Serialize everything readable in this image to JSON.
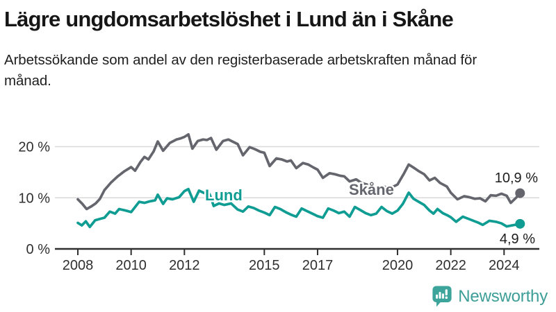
{
  "header": {
    "title": "Lägre ungdomsarbetslöshet i Lund än i Skåne",
    "subtitle": "Arbetssökande som andel av den registerbaserade arbetskraften månad för månad."
  },
  "brand": {
    "name": "Newsworthy",
    "color": "#3da49b"
  },
  "colors": {
    "lund_line": "#0f9c93",
    "skane_line": "#64656d",
    "gridline": "#d9d9d9",
    "axis": "#2f2f2f",
    "text_dark": "#1c1c1c"
  },
  "chart_data": {
    "type": "line",
    "title": "Lägre ungdomsarbetslöshet i Lund än i Skåne",
    "subtitle": "Arbetssökande som andel av den registerbaserade arbetskraften månad för månad.",
    "xlabel": "",
    "ylabel": "",
    "y_unit": "%",
    "ylim": [
      0,
      24
    ],
    "x_range_years": [
      2007.1,
      2025.3
    ],
    "grid": "horizontal-only",
    "legend_position": "inline-labels",
    "x_axis": {
      "ticks": [
        {
          "value": 2008,
          "label": "2008"
        },
        {
          "value": 2010,
          "label": "2010"
        },
        {
          "value": 2012,
          "label": "2012"
        },
        {
          "value": 2015,
          "label": "2015"
        },
        {
          "value": 2017,
          "label": "2017"
        },
        {
          "value": 2020,
          "label": "2020"
        },
        {
          "value": 2022,
          "label": "2022"
        },
        {
          "value": 2024,
          "label": "2024"
        }
      ]
    },
    "y_axis": {
      "ticks": [
        {
          "value": 0,
          "label": "0 %",
          "gridline": false
        },
        {
          "value": 10,
          "label": "10 %",
          "gridline": true
        },
        {
          "value": 20,
          "label": "20 %",
          "gridline": true
        }
      ]
    },
    "series": [
      {
        "name": "Skåne",
        "color": "#64656d",
        "end_value": 10.9,
        "end_label": "10,9 %",
        "points": [
          [
            2008.0,
            9.7
          ],
          [
            2008.17,
            8.8
          ],
          [
            2008.33,
            7.8
          ],
          [
            2008.5,
            8.3
          ],
          [
            2008.67,
            8.9
          ],
          [
            2008.83,
            9.8
          ],
          [
            2009.0,
            11.5
          ],
          [
            2009.25,
            13.0
          ],
          [
            2009.5,
            14.2
          ],
          [
            2009.75,
            15.2
          ],
          [
            2010.0,
            16.0
          ],
          [
            2010.15,
            15.3
          ],
          [
            2010.35,
            17.0
          ],
          [
            2010.5,
            18.0
          ],
          [
            2010.65,
            17.5
          ],
          [
            2010.85,
            19.1
          ],
          [
            2011.0,
            21.0
          ],
          [
            2011.2,
            19.2
          ],
          [
            2011.45,
            20.7
          ],
          [
            2011.7,
            21.4
          ],
          [
            2011.85,
            21.6
          ],
          [
            2012.0,
            21.9
          ],
          [
            2012.15,
            22.4
          ],
          [
            2012.3,
            19.6
          ],
          [
            2012.5,
            21.1
          ],
          [
            2012.7,
            21.4
          ],
          [
            2012.85,
            21.3
          ],
          [
            2013.0,
            21.7
          ],
          [
            2013.2,
            19.4
          ],
          [
            2013.45,
            21.1
          ],
          [
            2013.65,
            21.4
          ],
          [
            2013.85,
            20.9
          ],
          [
            2014.0,
            20.5
          ],
          [
            2014.2,
            18.3
          ],
          [
            2014.45,
            19.9
          ],
          [
            2014.65,
            19.5
          ],
          [
            2014.85,
            19.0
          ],
          [
            2015.0,
            18.8
          ],
          [
            2015.2,
            16.2
          ],
          [
            2015.45,
            17.7
          ],
          [
            2015.65,
            17.5
          ],
          [
            2015.85,
            17.1
          ],
          [
            2016.0,
            17.3
          ],
          [
            2016.2,
            15.8
          ],
          [
            2016.45,
            16.8
          ],
          [
            2016.65,
            16.5
          ],
          [
            2016.85,
            15.9
          ],
          [
            2017.0,
            15.5
          ],
          [
            2017.2,
            13.9
          ],
          [
            2017.45,
            14.8
          ],
          [
            2017.65,
            14.6
          ],
          [
            2017.85,
            14.3
          ],
          [
            2018.0,
            14.2
          ],
          [
            2018.2,
            13.2
          ],
          [
            2018.45,
            13.6
          ],
          [
            2018.65,
            12.9
          ],
          [
            2018.85,
            12.6
          ],
          [
            2019.0,
            12.4
          ],
          [
            2019.2,
            11.4
          ],
          [
            2019.45,
            12.2
          ],
          [
            2019.65,
            12.0
          ],
          [
            2019.85,
            12.2
          ],
          [
            2020.0,
            12.6
          ],
          [
            2020.25,
            14.8
          ],
          [
            2020.42,
            16.5
          ],
          [
            2020.6,
            15.9
          ],
          [
            2020.8,
            15.2
          ],
          [
            2021.0,
            14.6
          ],
          [
            2021.2,
            13.4
          ],
          [
            2021.4,
            13.9
          ],
          [
            2021.6,
            12.9
          ],
          [
            2021.85,
            12.2
          ],
          [
            2022.0,
            11.0
          ],
          [
            2022.25,
            9.7
          ],
          [
            2022.5,
            10.3
          ],
          [
            2022.7,
            10.1
          ],
          [
            2022.9,
            9.8
          ],
          [
            2023.1,
            9.9
          ],
          [
            2023.3,
            9.3
          ],
          [
            2023.5,
            10.5
          ],
          [
            2023.7,
            10.4
          ],
          [
            2023.9,
            10.8
          ],
          [
            2024.1,
            10.4
          ],
          [
            2024.25,
            9.0
          ],
          [
            2024.45,
            10.0
          ],
          [
            2024.6,
            10.9
          ]
        ]
      },
      {
        "name": "Lund",
        "color": "#0f9c93",
        "end_value": 4.9,
        "end_label": "4,9 %",
        "points": [
          [
            2008.0,
            5.1
          ],
          [
            2008.15,
            4.6
          ],
          [
            2008.3,
            5.4
          ],
          [
            2008.45,
            4.3
          ],
          [
            2008.65,
            5.6
          ],
          [
            2008.85,
            5.9
          ],
          [
            2009.0,
            6.1
          ],
          [
            2009.2,
            7.3
          ],
          [
            2009.4,
            6.9
          ],
          [
            2009.55,
            7.8
          ],
          [
            2009.8,
            7.5
          ],
          [
            2010.0,
            7.2
          ],
          [
            2010.3,
            9.2
          ],
          [
            2010.5,
            9.0
          ],
          [
            2010.7,
            9.3
          ],
          [
            2010.9,
            9.5
          ],
          [
            2011.0,
            10.6
          ],
          [
            2011.2,
            8.8
          ],
          [
            2011.35,
            9.9
          ],
          [
            2011.55,
            9.7
          ],
          [
            2011.8,
            10.1
          ],
          [
            2012.0,
            11.3
          ],
          [
            2012.15,
            11.7
          ],
          [
            2012.35,
            9.2
          ],
          [
            2012.55,
            11.4
          ],
          [
            2012.75,
            10.9
          ],
          [
            2012.95,
            10.7
          ],
          [
            2013.1,
            8.4
          ],
          [
            2013.3,
            8.9
          ],
          [
            2013.5,
            8.6
          ],
          [
            2013.75,
            8.9
          ],
          [
            2014.0,
            7.7
          ],
          [
            2014.2,
            7.3
          ],
          [
            2014.4,
            8.3
          ],
          [
            2014.6,
            8.0
          ],
          [
            2014.8,
            7.5
          ],
          [
            2015.0,
            7.1
          ],
          [
            2015.2,
            6.6
          ],
          [
            2015.4,
            8.2
          ],
          [
            2015.6,
            7.8
          ],
          [
            2015.8,
            7.2
          ],
          [
            2016.0,
            6.7
          ],
          [
            2016.2,
            6.3
          ],
          [
            2016.4,
            7.9
          ],
          [
            2016.6,
            7.4
          ],
          [
            2016.8,
            6.9
          ],
          [
            2017.0,
            6.4
          ],
          [
            2017.2,
            6.1
          ],
          [
            2017.4,
            7.9
          ],
          [
            2017.6,
            7.5
          ],
          [
            2017.8,
            7.0
          ],
          [
            2018.0,
            7.3
          ],
          [
            2018.2,
            6.3
          ],
          [
            2018.4,
            8.2
          ],
          [
            2018.6,
            7.6
          ],
          [
            2018.8,
            7.0
          ],
          [
            2019.0,
            6.6
          ],
          [
            2019.2,
            6.9
          ],
          [
            2019.4,
            8.2
          ],
          [
            2019.6,
            7.4
          ],
          [
            2019.8,
            6.9
          ],
          [
            2020.0,
            7.5
          ],
          [
            2020.2,
            8.8
          ],
          [
            2020.42,
            11.0
          ],
          [
            2020.6,
            9.8
          ],
          [
            2020.8,
            9.2
          ],
          [
            2021.0,
            8.6
          ],
          [
            2021.2,
            7.5
          ],
          [
            2021.35,
            6.9
          ],
          [
            2021.5,
            7.8
          ],
          [
            2021.7,
            7.0
          ],
          [
            2021.9,
            6.5
          ],
          [
            2022.0,
            6.2
          ],
          [
            2022.2,
            5.3
          ],
          [
            2022.45,
            6.3
          ],
          [
            2022.7,
            5.8
          ],
          [
            2022.9,
            5.4
          ],
          [
            2023.0,
            5.2
          ],
          [
            2023.2,
            4.7
          ],
          [
            2023.45,
            5.5
          ],
          [
            2023.7,
            5.3
          ],
          [
            2023.9,
            5.0
          ],
          [
            2024.1,
            4.4
          ],
          [
            2024.3,
            4.6
          ],
          [
            2024.6,
            4.9
          ]
        ]
      }
    ]
  }
}
